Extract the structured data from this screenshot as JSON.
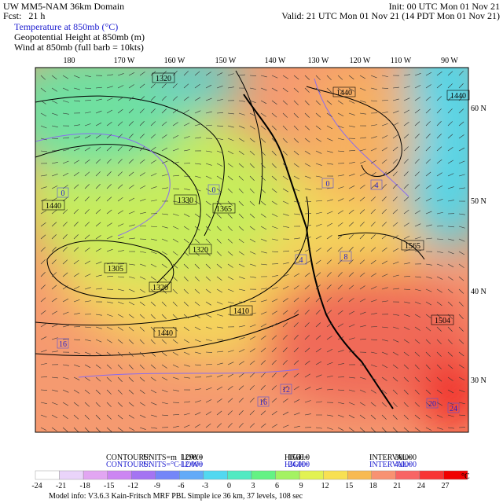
{
  "header": {
    "title": "UW MM5-NAM 36km Domain",
    "forecast": "Fcst:   21 h",
    "init": "Init: 00 UTC Mon 01 Nov 21",
    "valid": "Valid: 21 UTC Mon 01 Nov 21 (14 PDT Mon 01 Nov 21)",
    "fields": [
      "Temperature at 850mb (°C)",
      "Geopotential Height at 850mb (m)",
      "Wind at 850mb (full barb = 10kts)"
    ]
  },
  "map": {
    "longitudes": [
      "180",
      "170 W",
      "160 W",
      "150 W",
      "140 W",
      "130 W",
      "120 W",
      "110 W",
      "90 W"
    ],
    "latitudes": [
      "60 N",
      "50 N",
      "40 N",
      "30 N"
    ],
    "height_labels": [
      "1320",
      "1440",
      "1365",
      "1330",
      "1320",
      "1305",
      "1320",
      "1410",
      "1440",
      "1565",
      "1504",
      "1440",
      "1440"
    ],
    "temp_labels": [
      "0",
      "0",
      "4",
      "8",
      "12",
      "16",
      "16",
      "20",
      "24",
      "4",
      "0"
    ]
  },
  "footer": {
    "contours": [
      [
        "CONTOURS:",
        "UNITS=m",
        "LOW=",
        "1290.0",
        "HIGH=",
        "1560.0",
        "INTERVAL=",
        "30.000"
      ],
      [
        "CONTOURS:",
        "UNITS=°C",
        "LOW=",
        "-12.000",
        "HIGH=",
        "24.000",
        "INTERVAL=",
        "4.0000"
      ]
    ],
    "colorbar": {
      "labels": [
        "-24",
        "-21",
        "-18",
        "-15",
        "-12",
        "-9",
        "-6",
        "-3",
        "0",
        "3",
        "6",
        "9",
        "12",
        "15",
        "18",
        "21",
        "24",
        "27"
      ],
      "unit": "°C",
      "colors": [
        "#ffffff",
        "#ead4fa",
        "#e2a6f2",
        "#cc86f2",
        "#a474f2",
        "#7486f8",
        "#62aaf8",
        "#52d8f0",
        "#52eac2",
        "#64f284",
        "#a4f262",
        "#e2f252",
        "#f8e052",
        "#f8ba52",
        "#f89272",
        "#f86464",
        "#f83434",
        "#f00000"
      ]
    },
    "model_info": "Model info: V3.6.3 Kain-Fritsch MRF PBL    Simple ice    36 km, 37 levels, 108 sec"
  }
}
